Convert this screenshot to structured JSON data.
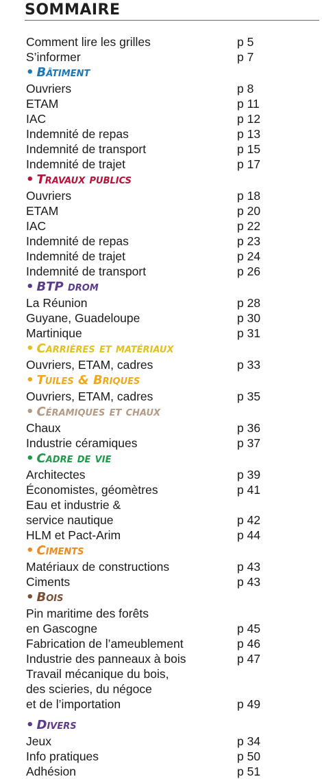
{
  "title": "SOMMAIRE",
  "colors": {
    "batiment": "#1e77b8",
    "travaux_publics": "#b8123a",
    "btp_drom": "#5b3b8c",
    "carrieres": "#e2c11d",
    "tuiles": "#f0a81b",
    "ceramiques": "#b59a85",
    "cadre": "#1f9a48",
    "ciments": "#f08a1f",
    "bois": "#7a5035",
    "divers": "#5b3b8c"
  },
  "intro": [
    {
      "label": "Comment lire les grilles",
      "page": "p 5"
    },
    {
      "label": "S’informer",
      "page": "p 7"
    }
  ],
  "sections": [
    {
      "key": "batiment",
      "title": "Bâtiment",
      "items": [
        {
          "label": "Ouvriers",
          "page": "p 8"
        },
        {
          "label": "ETAM",
          "page": "p 11"
        },
        {
          "label": "IAC",
          "page": "p 12"
        },
        {
          "label": "Indemnité de repas",
          "page": "p 13"
        },
        {
          "label": "Indemnité de transport",
          "page": "p 15"
        },
        {
          "label": "Indemnité de trajet",
          "page": "p 17"
        }
      ]
    },
    {
      "key": "travaux_publics",
      "title": "Travaux publics",
      "items": [
        {
          "label": "Ouvriers",
          "page": "p 18"
        },
        {
          "label": "ETAM",
          "page": "p 20"
        },
        {
          "label": "IAC",
          "page": "p 22"
        },
        {
          "label": "Indemnité de repas",
          "page": "p 23"
        },
        {
          "label": "Indemnité de trajet",
          "page": "p 24"
        },
        {
          "label": "Indemnité de transport",
          "page": "p 26"
        }
      ]
    },
    {
      "key": "btp_drom",
      "title": "BTP drom",
      "items": [
        {
          "label": "La Réunion",
          "page": "p 28"
        },
        {
          "label": "Guyane, Guadeloupe",
          "page": "p 30"
        },
        {
          "label": "Martinique",
          "page": "p 31"
        }
      ]
    },
    {
      "key": "carrieres",
      "title": "Carrières et matériaux",
      "items": [
        {
          "label": "Ouvriers, ETAM, cadres",
          "page": "p 33"
        }
      ]
    },
    {
      "key": "tuiles",
      "title": "Tuiles & Briques",
      "items": [
        {
          "label": "Ouvriers, ETAM, cadres",
          "page": "p 35"
        }
      ]
    },
    {
      "key": "ceramiques",
      "title": "Céramiques et chaux",
      "items": [
        {
          "label": "Chaux",
          "page": "p 36"
        },
        {
          "label": "Industrie céramiques",
          "page": "p 37"
        }
      ]
    },
    {
      "key": "cadre",
      "title": "Cadre de vie",
      "items": [
        {
          "label": "Architectes",
          "page": "p 39"
        },
        {
          "label": "Économistes, géomètres",
          "page": "p 41"
        },
        {
          "label": "Eau et industrie &",
          "page": ""
        },
        {
          "label": "service nautique",
          "page": "p 42"
        },
        {
          "label": "HLM et Pact-Arim",
          "page": "p 44"
        }
      ]
    },
    {
      "key": "ciments",
      "title": "Ciments",
      "items": [
        {
          "label": "Matériaux de constructions",
          "page": "p 43"
        },
        {
          "label": "Ciments",
          "page": "p 43"
        }
      ]
    },
    {
      "key": "bois",
      "title": "Bois",
      "items": [
        {
          "label": "Pin maritime des forêts",
          "page": ""
        },
        {
          "label": "en Gascogne",
          "page": "p 45"
        },
        {
          "label": "Fabrication de l’ameublement",
          "page": "p 46"
        },
        {
          "label": "Industrie des panneaux à bois",
          "page": "p 47"
        },
        {
          "label": "Travail mécanique du bois,",
          "page": ""
        },
        {
          "label": "des scieries, du négoce",
          "page": ""
        },
        {
          "label": "et de l’importation",
          "page": "p 49"
        }
      ]
    },
    {
      "key": "divers",
      "title": "Divers",
      "gap_before": true,
      "items": [
        {
          "label": "Jeux",
          "page": "p 34"
        },
        {
          "label": "Info pratiques",
          "page": "p 50"
        },
        {
          "label": "Adhésion",
          "page": "p 51"
        }
      ]
    }
  ]
}
